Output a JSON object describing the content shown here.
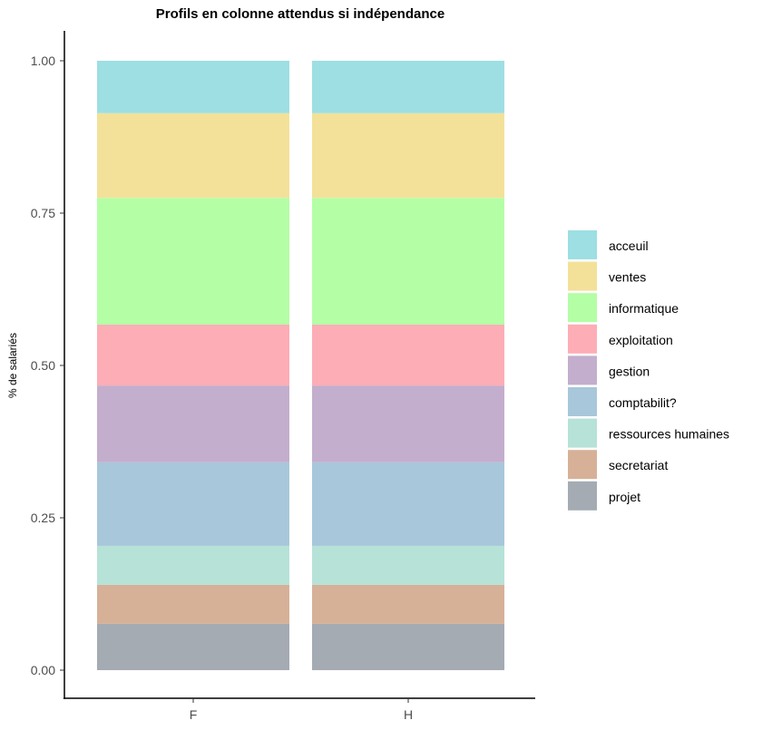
{
  "chart_data": {
    "type": "bar",
    "stacked": true,
    "title": "Profils en colonne attendus si indépendance",
    "xlabel": "",
    "ylabel": "% de salariés",
    "ylim": [
      0,
      1
    ],
    "yticks": [
      "0.00",
      "0.25",
      "0.50",
      "0.75",
      "1.00"
    ],
    "ytick_values": [
      0,
      0.25,
      0.5,
      0.75,
      1
    ],
    "categories": [
      "F",
      "H"
    ],
    "legend_position": "right",
    "series": [
      {
        "name": "projet",
        "color": "#a5abb3",
        "values": [
          0.076,
          0.076
        ]
      },
      {
        "name": "secretariat",
        "color": "#d6b198",
        "values": [
          0.064,
          0.064
        ]
      },
      {
        "name": "ressources humaines",
        "color": "#b6e2d8",
        "values": [
          0.064,
          0.064
        ]
      },
      {
        "name": "comptabilit?",
        "color": "#a8c7da",
        "values": [
          0.137,
          0.137
        ]
      },
      {
        "name": "gestion",
        "color": "#c3aecd",
        "values": [
          0.126,
          0.126
        ]
      },
      {
        "name": "exploitation",
        "color": "#fdadb6",
        "values": [
          0.1,
          0.1
        ]
      },
      {
        "name": "informatique",
        "color": "#b4fea6",
        "values": [
          0.208,
          0.208
        ]
      },
      {
        "name": "ventes",
        "color": "#f3e199",
        "values": [
          0.139,
          0.139
        ]
      },
      {
        "name": "acceuil",
        "color": "#9ddfe3",
        "values": [
          0.086,
          0.086
        ]
      }
    ]
  }
}
